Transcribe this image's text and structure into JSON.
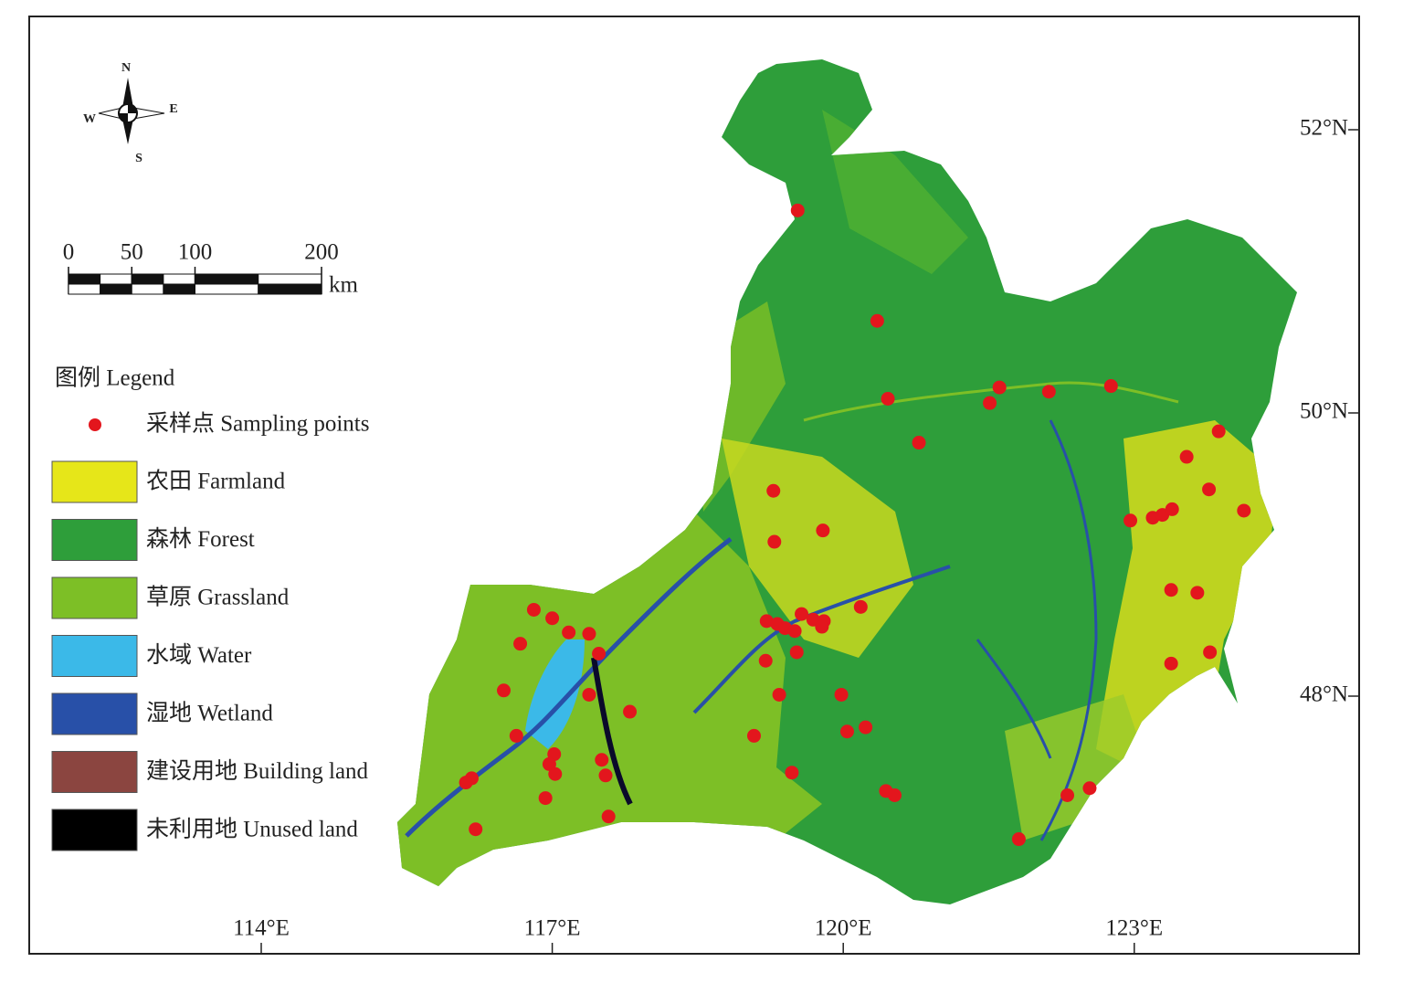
{
  "compass": {
    "north": "N",
    "south": "S",
    "east": "E",
    "west": "W"
  },
  "scale_bar": {
    "ticks": [
      0,
      50,
      100,
      200
    ],
    "unit": "km"
  },
  "legend": {
    "title": "图例 Legend",
    "point_label": "采样点 Sampling points",
    "point_color": "#e3161d",
    "items": [
      {
        "label": "农田 Farmland",
        "color": "#e6e619"
      },
      {
        "label": "森林 Forest",
        "color": "#2e9e3a"
      },
      {
        "label": "草原 Grassland",
        "color": "#7dbf26"
      },
      {
        "label": "水域 Water",
        "color": "#3bb9e8"
      },
      {
        "label": "湿地 Wetland",
        "color": "#2850a8"
      },
      {
        "label": "建设用地 Building land",
        "color": "#8b4540"
      },
      {
        "label": "未利用地 Unused land",
        "color": "#000000"
      }
    ]
  },
  "lon_ticks": [
    {
      "value": 114,
      "label": "114°E"
    },
    {
      "value": 117,
      "label": "117°E"
    },
    {
      "value": 120,
      "label": "120°E"
    },
    {
      "value": 123,
      "label": "123°E"
    }
  ],
  "lat_ticks": [
    {
      "value": 52,
      "label": "52°N"
    },
    {
      "value": 50,
      "label": "50°N"
    },
    {
      "value": 48,
      "label": "48°N"
    }
  ],
  "sampling_points": [
    {
      "lon": 119.53,
      "lat": 51.43
    },
    {
      "lon": 120.35,
      "lat": 50.65
    },
    {
      "lon": 120.46,
      "lat": 50.1
    },
    {
      "lon": 120.78,
      "lat": 49.79
    },
    {
      "lon": 121.51,
      "lat": 50.07
    },
    {
      "lon": 121.61,
      "lat": 50.18
    },
    {
      "lon": 122.12,
      "lat": 50.15
    },
    {
      "lon": 122.76,
      "lat": 50.19
    },
    {
      "lon": 123.87,
      "lat": 49.87
    },
    {
      "lon": 123.54,
      "lat": 49.69
    },
    {
      "lon": 123.77,
      "lat": 49.46
    },
    {
      "lon": 124.13,
      "lat": 49.31
    },
    {
      "lon": 122.96,
      "lat": 49.24
    },
    {
      "lon": 123.19,
      "lat": 49.26
    },
    {
      "lon": 123.29,
      "lat": 49.28
    },
    {
      "lon": 123.39,
      "lat": 49.32
    },
    {
      "lon": 123.38,
      "lat": 48.75
    },
    {
      "lon": 123.65,
      "lat": 48.73
    },
    {
      "lon": 123.78,
      "lat": 48.31
    },
    {
      "lon": 123.38,
      "lat": 48.23
    },
    {
      "lon": 119.28,
      "lat": 49.45
    },
    {
      "lon": 119.29,
      "lat": 49.09
    },
    {
      "lon": 119.79,
      "lat": 49.17
    },
    {
      "lon": 120.18,
      "lat": 48.63
    },
    {
      "lon": 119.57,
      "lat": 48.58
    },
    {
      "lon": 119.21,
      "lat": 48.53
    },
    {
      "lon": 119.32,
      "lat": 48.51
    },
    {
      "lon": 119.4,
      "lat": 48.48
    },
    {
      "lon": 119.5,
      "lat": 48.46
    },
    {
      "lon": 119.69,
      "lat": 48.54
    },
    {
      "lon": 119.8,
      "lat": 48.53
    },
    {
      "lon": 119.78,
      "lat": 48.49
    },
    {
      "lon": 119.52,
      "lat": 48.31
    },
    {
      "lon": 119.2,
      "lat": 48.25
    },
    {
      "lon": 119.34,
      "lat": 48.01
    },
    {
      "lon": 119.98,
      "lat": 48.01
    },
    {
      "lon": 119.08,
      "lat": 47.72
    },
    {
      "lon": 120.04,
      "lat": 47.75
    },
    {
      "lon": 120.23,
      "lat": 47.78
    },
    {
      "lon": 119.47,
      "lat": 47.46
    },
    {
      "lon": 120.44,
      "lat": 47.33
    },
    {
      "lon": 120.53,
      "lat": 47.3
    },
    {
      "lon": 121.81,
      "lat": 46.99
    },
    {
      "lon": 122.31,
      "lat": 47.3
    },
    {
      "lon": 122.54,
      "lat": 47.35
    },
    {
      "lon": 116.81,
      "lat": 48.61
    },
    {
      "lon": 117.0,
      "lat": 48.55
    },
    {
      "lon": 117.17,
      "lat": 48.45
    },
    {
      "lon": 117.38,
      "lat": 48.44
    },
    {
      "lon": 116.67,
      "lat": 48.37
    },
    {
      "lon": 117.48,
      "lat": 48.3
    },
    {
      "lon": 116.5,
      "lat": 48.04
    },
    {
      "lon": 117.38,
      "lat": 48.01
    },
    {
      "lon": 117.8,
      "lat": 47.89
    },
    {
      "lon": 116.63,
      "lat": 47.72
    },
    {
      "lon": 117.02,
      "lat": 47.59
    },
    {
      "lon": 116.97,
      "lat": 47.52
    },
    {
      "lon": 117.03,
      "lat": 47.45
    },
    {
      "lon": 117.51,
      "lat": 47.55
    },
    {
      "lon": 117.55,
      "lat": 47.44
    },
    {
      "lon": 116.17,
      "lat": 47.42
    },
    {
      "lon": 116.11,
      "lat": 47.39
    },
    {
      "lon": 116.93,
      "lat": 47.28
    },
    {
      "lon": 117.58,
      "lat": 47.15
    },
    {
      "lon": 116.21,
      "lat": 47.06
    }
  ]
}
